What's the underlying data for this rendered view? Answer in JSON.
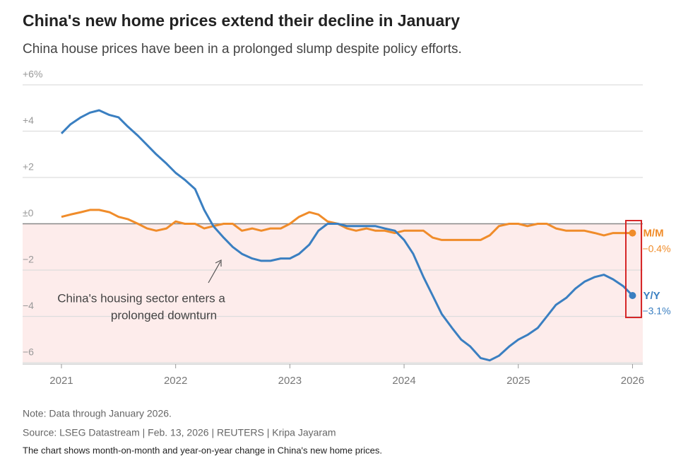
{
  "chart_data": {
    "type": "line",
    "title": "China's new home prices extend their decline in January",
    "subtitle": "China house prices have been in a prolonged slump despite policy efforts.",
    "annotation": [
      "China's housing sector enters a",
      "prolonged downturn"
    ],
    "note": "Note: Data through January 2026.",
    "source": "Source: LSEG Datastream | Feb. 13, 2026 | REUTERS | Kripa Jayaram",
    "description": "The chart shows month-on-month and year-on-year change in China's new home prices.",
    "x": [
      2021,
      2021.08,
      2021.17,
      2021.25,
      2021.33,
      2021.42,
      2021.5,
      2021.58,
      2021.67,
      2021.75,
      2021.83,
      2021.92,
      2022,
      2022.08,
      2022.17,
      2022.25,
      2022.33,
      2022.42,
      2022.5,
      2022.58,
      2022.67,
      2022.75,
      2022.83,
      2022.92,
      2023,
      2023.08,
      2023.17,
      2023.25,
      2023.33,
      2023.42,
      2023.5,
      2023.58,
      2023.67,
      2023.75,
      2023.83,
      2023.92,
      2024,
      2024.08,
      2024.17,
      2024.25,
      2024.33,
      2024.42,
      2024.5,
      2024.58,
      2024.67,
      2024.75,
      2024.83,
      2024.92,
      2025,
      2025.08,
      2025.17,
      2025.25,
      2025.33,
      2025.42,
      2025.5,
      2025.58,
      2025.67,
      2025.75,
      2025.83,
      2025.92,
      2026
    ],
    "series": [
      {
        "name": "M/M",
        "color": "#f08c2a",
        "values": [
          0.3,
          0.4,
          0.5,
          0.6,
          0.6,
          0.5,
          0.3,
          0.2,
          0.0,
          -0.2,
          -0.3,
          -0.2,
          0.1,
          0.0,
          0.0,
          -0.2,
          -0.1,
          0.0,
          0.0,
          -0.3,
          -0.2,
          -0.3,
          -0.2,
          -0.2,
          0.0,
          0.3,
          0.5,
          0.4,
          0.1,
          0.0,
          -0.2,
          -0.3,
          -0.2,
          -0.3,
          -0.3,
          -0.4,
          -0.3,
          -0.3,
          -0.3,
          -0.6,
          -0.7,
          -0.7,
          -0.7,
          -0.7,
          -0.7,
          -0.5,
          -0.1,
          0.0,
          0.0,
          -0.1,
          0.0,
          0.0,
          -0.2,
          -0.3,
          -0.3,
          -0.3,
          -0.4,
          -0.5,
          -0.4,
          -0.4,
          -0.4
        ],
        "value_labels": [
          null,
          null,
          null,
          null,
          null,
          null,
          null,
          null,
          null,
          null,
          null,
          null,
          null,
          null,
          null,
          null,
          null,
          null,
          null,
          null,
          null,
          null,
          null,
          null,
          null,
          null,
          null,
          null,
          null,
          null,
          null,
          null,
          null,
          null,
          null,
          null,
          null,
          null,
          null,
          null,
          null,
          null,
          null,
          null,
          null,
          null,
          null,
          null,
          null,
          null,
          null,
          null,
          null,
          null,
          null,
          null,
          null,
          null,
          null,
          null,
          "−0.4%"
        ]
      },
      {
        "name": "Y/Y",
        "color": "#3a7fc1",
        "values": [
          3.9,
          4.3,
          4.6,
          4.8,
          4.9,
          4.7,
          4.6,
          4.2,
          3.8,
          3.4,
          3.0,
          2.6,
          2.2,
          1.9,
          1.5,
          0.6,
          -0.1,
          -0.6,
          -1.0,
          -1.3,
          -1.5,
          -1.6,
          -1.6,
          -1.5,
          -1.5,
          -1.3,
          -0.9,
          -0.3,
          0.0,
          0.0,
          -0.1,
          -0.1,
          -0.1,
          -0.1,
          -0.2,
          -0.3,
          -0.7,
          -1.3,
          -2.3,
          -3.1,
          -3.9,
          -4.5,
          -5.0,
          -5.3,
          -5.8,
          -5.9,
          -5.7,
          -5.3,
          -5.0,
          -4.8,
          -4.5,
          -4.0,
          -3.5,
          -3.2,
          -2.8,
          -2.5,
          -2.3,
          -2.2,
          -2.4,
          -2.7,
          -3.1
        ],
        "value_labels": [
          null,
          null,
          null,
          null,
          null,
          null,
          null,
          null,
          null,
          null,
          null,
          null,
          null,
          null,
          null,
          null,
          null,
          null,
          null,
          null,
          null,
          null,
          null,
          null,
          null,
          null,
          null,
          null,
          null,
          null,
          null,
          null,
          null,
          null,
          null,
          null,
          null,
          null,
          null,
          null,
          null,
          null,
          null,
          null,
          null,
          null,
          null,
          null,
          null,
          null,
          null,
          null,
          null,
          null,
          null,
          null,
          null,
          null,
          null,
          null,
          "−3.1%"
        ]
      }
    ],
    "xlim": [
      2020.66,
      2026.09
    ],
    "xticks": [
      2021,
      2022,
      2023,
      2024,
      2025,
      2026
    ],
    "ylim": [
      -6,
      6
    ],
    "yticks": [
      {
        "value": 6,
        "label": "+6%"
      },
      {
        "value": 4,
        "label": "+4"
      },
      {
        "value": 2,
        "label": "+2"
      },
      {
        "value": 0,
        "label": "±0"
      },
      {
        "value": -2,
        "label": "−2"
      },
      {
        "value": -4,
        "label": "−4"
      },
      {
        "value": -6,
        "label": "−6"
      }
    ],
    "grid": true,
    "negative_shade": "#fdeceb"
  }
}
